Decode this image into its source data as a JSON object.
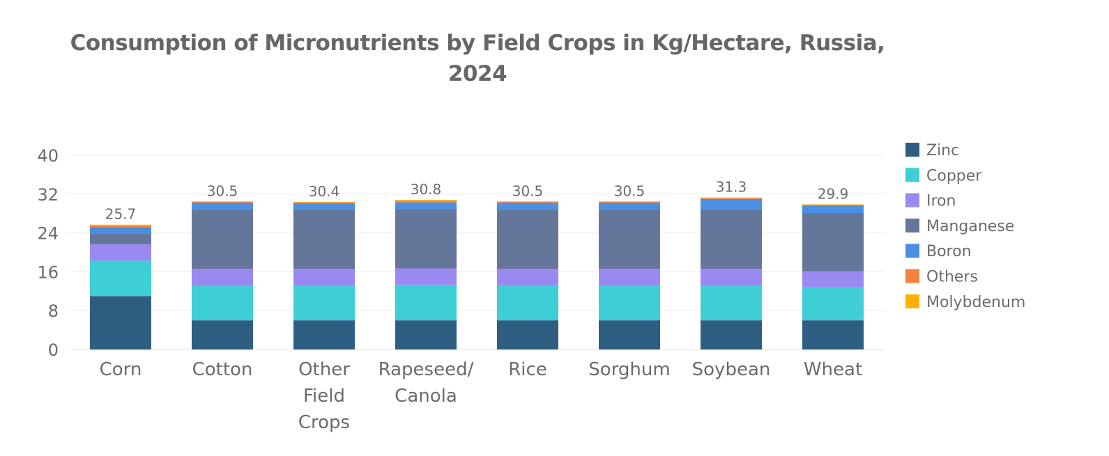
{
  "chart_data": {
    "type": "bar",
    "stacked": true,
    "title": "Consumption of Micronutrients by Field Crops in Kg/Hectare, Russia, 2024",
    "title_lines": [
      "Consumption of Micronutrients by Field Crops in Kg/Hectare, Russia,",
      "2024"
    ],
    "xlabel": "",
    "ylabel": "",
    "ylim": [
      0,
      40
    ],
    "yticks": [
      0,
      8,
      16,
      24,
      32,
      40
    ],
    "grid": true,
    "legend_position": "right",
    "categories": [
      "Corn",
      "Cotton",
      "Other Field Crops",
      "Rapeseed/ Canola",
      "Rice",
      "Sorghum",
      "Soybean",
      "Wheat"
    ],
    "category_lines": [
      [
        "Corn"
      ],
      [
        "Cotton"
      ],
      [
        "Other",
        "Field",
        "Crops"
      ],
      [
        "Rapeseed/",
        "Canola"
      ],
      [
        "Rice"
      ],
      [
        "Sorghum"
      ],
      [
        "Soybean"
      ],
      [
        "Wheat"
      ]
    ],
    "series": [
      {
        "name": "Zinc",
        "color": "#2e5e82",
        "values": [
          11.0,
          6.0,
          6.0,
          6.0,
          6.0,
          6.0,
          6.0,
          6.0
        ]
      },
      {
        "name": "Copper",
        "color": "#3ecfd6",
        "values": [
          7.3,
          7.2,
          7.2,
          7.3,
          7.2,
          7.2,
          7.2,
          6.8
        ]
      },
      {
        "name": "Iron",
        "color": "#9b89f2",
        "values": [
          3.4,
          3.4,
          3.4,
          3.4,
          3.4,
          3.4,
          3.4,
          3.3
        ]
      },
      {
        "name": "Manganese",
        "color": "#64769a",
        "values": [
          2.2,
          12.2,
          12.2,
          12.2,
          12.2,
          12.2,
          12.2,
          12.0
        ]
      },
      {
        "name": "Boron",
        "color": "#4a8fe2",
        "values": [
          1.3,
          1.4,
          1.3,
          1.4,
          1.4,
          1.4,
          2.2,
          1.5
        ]
      },
      {
        "name": "Others",
        "color": "#f4813f",
        "values": [
          0.3,
          0.2,
          0.2,
          0.3,
          0.2,
          0.2,
          0.2,
          0.2
        ]
      },
      {
        "name": "Molybdenum",
        "color": "#ffb000",
        "values": [
          0.2,
          0.1,
          0.1,
          0.2,
          0.1,
          0.1,
          0.1,
          0.1
        ]
      }
    ],
    "totals": [
      "25.7",
      "30.5",
      "30.4",
      "30.8",
      "30.5",
      "30.5",
      "31.3",
      "29.9"
    ]
  }
}
